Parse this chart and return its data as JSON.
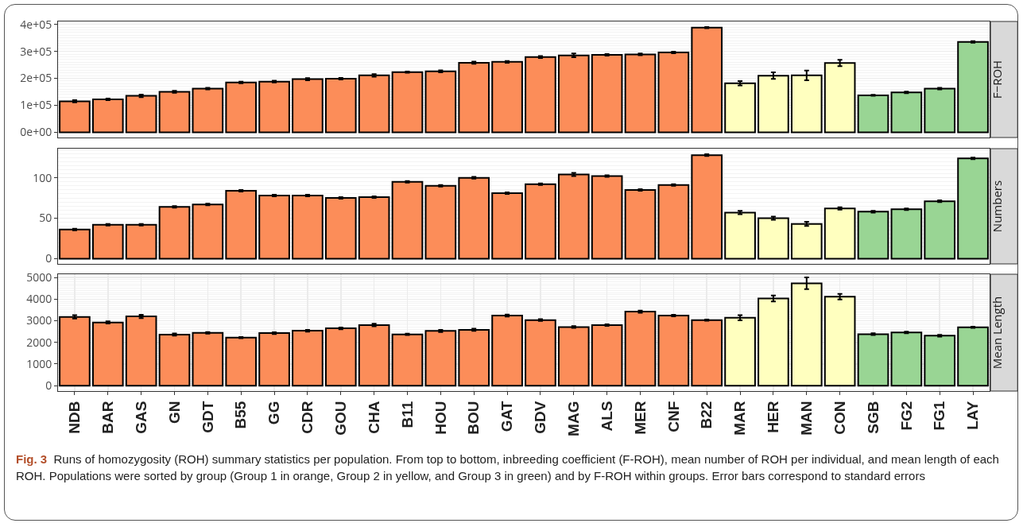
{
  "chart_data": [
    {
      "type": "bar",
      "title": "F−ROH",
      "categories": [
        null,
        null,
        null,
        null,
        null,
        null,
        null,
        null,
        null,
        null,
        null,
        null,
        null,
        null,
        null,
        null,
        null,
        null,
        null,
        null,
        null,
        null,
        null,
        null,
        null,
        null,
        null,
        null
      ],
      "values": [
        115000,
        122000,
        135000,
        150000,
        162000,
        185000,
        188000,
        197000,
        199000,
        211000,
        223000,
        226000,
        258000,
        261000,
        279000,
        285000,
        287000,
        289000,
        296000,
        388000,
        182000,
        210000,
        211000,
        257000,
        137000,
        148000,
        162000,
        335000
      ],
      "errors": [
        4000,
        3000,
        5000,
        4000,
        3000,
        3000,
        3000,
        4000,
        3000,
        5000,
        2000,
        4000,
        4000,
        3000,
        4000,
        7000,
        3000,
        3000,
        3000,
        2000,
        8000,
        12000,
        18000,
        12000,
        2000,
        3000,
        3000,
        3000
      ],
      "colors": [
        "#fc8d59",
        "#fc8d59",
        "#fc8d59",
        "#fc8d59",
        "#fc8d59",
        "#fc8d59",
        "#fc8d59",
        "#fc8d59",
        "#fc8d59",
        "#fc8d59",
        "#fc8d59",
        "#fc8d59",
        "#fc8d59",
        "#fc8d59",
        "#fc8d59",
        "#fc8d59",
        "#fc8d59",
        "#fc8d59",
        "#fc8d59",
        "#fc8d59",
        "#ffffbf",
        "#ffffbf",
        "#ffffbf",
        "#ffffbf",
        "#99d594",
        "#99d594",
        "#99d594",
        "#99d594"
      ],
      "ylim": [
        -19500,
        411000
      ],
      "yticks": [
        {
          "value": 0,
          "label": "0e+00"
        },
        {
          "value": 100000,
          "label": "1e+05"
        },
        {
          "value": 200000,
          "label": "2e+05"
        },
        {
          "value": 300000,
          "label": "3e+05"
        },
        {
          "value": 400000,
          "label": "4e+05"
        }
      ],
      "grid": true,
      "tick_labels": "y"
    },
    {
      "type": "bar",
      "title": "Numbers",
      "categories": [
        null,
        null,
        null,
        null,
        null,
        null,
        null,
        null,
        null,
        null,
        null,
        null,
        null,
        null,
        null,
        null,
        null,
        null,
        null,
        null,
        null,
        null,
        null,
        null,
        null,
        null,
        null,
        null
      ],
      "values": [
        36,
        42,
        42,
        64,
        67,
        84,
        78,
        78,
        75,
        76,
        95,
        90,
        100,
        81,
        92,
        104,
        102,
        85,
        91,
        128,
        57,
        50,
        43,
        62,
        58,
        61,
        71,
        124
      ],
      "errors": [
        1,
        1,
        1,
        1,
        1,
        1,
        1,
        1,
        1,
        1,
        1,
        1,
        1,
        1,
        1,
        2,
        1,
        1,
        1,
        1,
        2,
        2,
        2.5,
        1.5,
        1,
        1,
        1,
        1
      ],
      "colors": [
        "#fc8d59",
        "#fc8d59",
        "#fc8d59",
        "#fc8d59",
        "#fc8d59",
        "#fc8d59",
        "#fc8d59",
        "#fc8d59",
        "#fc8d59",
        "#fc8d59",
        "#fc8d59",
        "#fc8d59",
        "#fc8d59",
        "#fc8d59",
        "#fc8d59",
        "#fc8d59",
        "#fc8d59",
        "#fc8d59",
        "#fc8d59",
        "#fc8d59",
        "#ffffbf",
        "#ffffbf",
        "#ffffbf",
        "#ffffbf",
        "#99d594",
        "#99d594",
        "#99d594",
        "#99d594"
      ],
      "ylim": [
        -6.5,
        136
      ],
      "yticks": [
        0,
        50,
        100
      ],
      "grid": true,
      "tick_labels": "y"
    },
    {
      "type": "bar",
      "title": "Mean Length",
      "categories": [
        "NDB",
        "BAR",
        "GAS",
        "GN",
        "GDT",
        "B55",
        "GG",
        "CDR",
        "GOU",
        "CHA",
        "B11",
        "HOU",
        "BOU",
        "GAT",
        "GDV",
        "MAG",
        "ALS",
        "MER",
        "CNF",
        "B22",
        "MAR",
        "HER",
        "MAN",
        "CON",
        "SGB",
        "FG2",
        "FG1",
        "LAY"
      ],
      "values": [
        3180,
        2920,
        3200,
        2360,
        2440,
        2220,
        2430,
        2540,
        2650,
        2800,
        2370,
        2530,
        2580,
        3240,
        3030,
        2710,
        2800,
        3420,
        3240,
        3030,
        3140,
        4030,
        4730,
        4110,
        2380,
        2460,
        2310,
        2700
      ],
      "errors": [
        80,
        50,
        80,
        50,
        40,
        30,
        40,
        40,
        40,
        60,
        30,
        50,
        50,
        50,
        40,
        40,
        40,
        50,
        40,
        30,
        120,
        140,
        270,
        130,
        40,
        40,
        40,
        30
      ],
      "colors": [
        "#fc8d59",
        "#fc8d59",
        "#fc8d59",
        "#fc8d59",
        "#fc8d59",
        "#fc8d59",
        "#fc8d59",
        "#fc8d59",
        "#fc8d59",
        "#fc8d59",
        "#fc8d59",
        "#fc8d59",
        "#fc8d59",
        "#fc8d59",
        "#fc8d59",
        "#fc8d59",
        "#fc8d59",
        "#fc8d59",
        "#fc8d59",
        "#fc8d59",
        "#ffffbf",
        "#ffffbf",
        "#ffffbf",
        "#ffffbf",
        "#99d594",
        "#99d594",
        "#99d594",
        "#99d594"
      ],
      "ylim": [
        -250,
        5150
      ],
      "yticks": [
        0,
        1000,
        2000,
        3000,
        4000,
        5000
      ],
      "grid": true,
      "annotations": [
        "Fig. 3",
        "Runs of homozygosity (ROH) summary statistics per population. From top to bottom, inbreeding coefficient (F-ROH), mean number of ROH per individual, and mean length of each ROH. Populations were sorted by group (Group 1 in orange, Group 2 in yellow, and Group 3 in green) and by F-ROH within groups. Error bars correspond to standard errors"
      ]
    }
  ]
}
